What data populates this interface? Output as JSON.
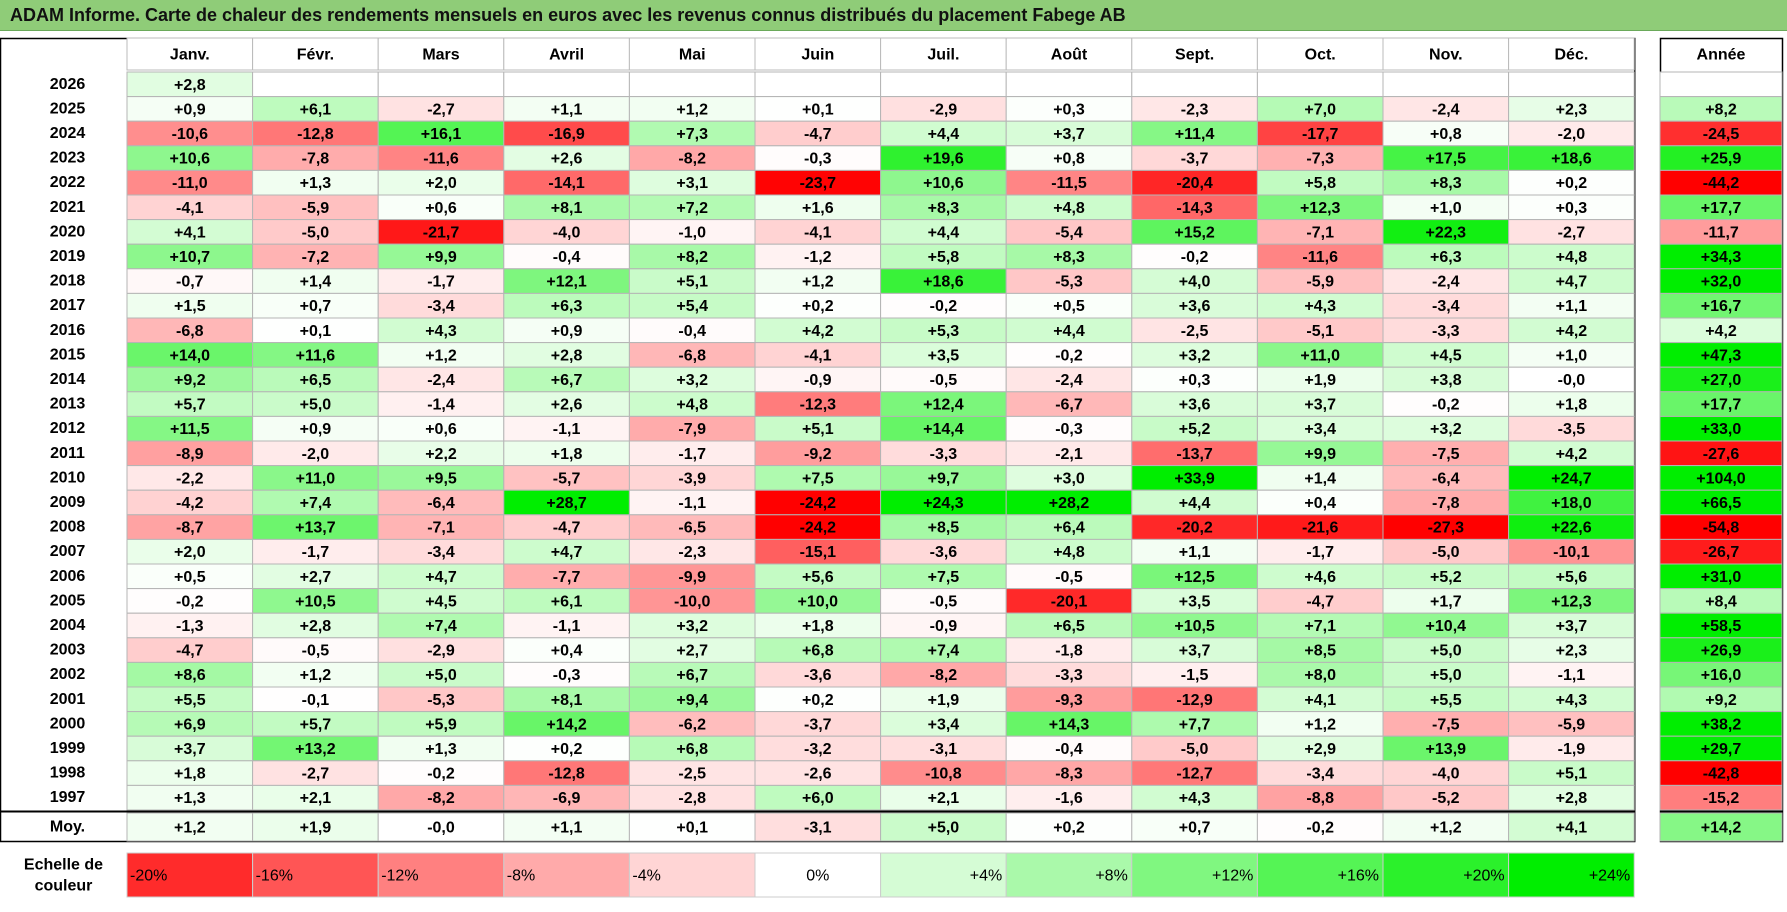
{
  "title": "ADAM Informe. Carte de chaleur des rendements mensuels en euros avec les revenus connus distribués du placement Fabege AB",
  "chart_data": {
    "type": "heatmap",
    "months": [
      "Janv.",
      "Févr.",
      "Mars",
      "Avril",
      "Mai",
      "Juin",
      "Juil.",
      "Août",
      "Sept.",
      "Oct.",
      "Nov.",
      "Déc."
    ],
    "year_header": "Année",
    "rows": [
      {
        "year": "2026",
        "values": [
          "+2,8",
          null,
          null,
          null,
          null,
          null,
          null,
          null,
          null,
          null,
          null,
          null
        ],
        "annual": null
      },
      {
        "year": "2025",
        "values": [
          "+0,9",
          "+6,1",
          "-2,7",
          "+1,1",
          "+1,2",
          "+0,1",
          "-2,9",
          "+0,3",
          "-2,3",
          "+7,0",
          "-2,4",
          "+2,3"
        ],
        "annual": "+8,2"
      },
      {
        "year": "2024",
        "values": [
          "-10,6",
          "-12,8",
          "+16,1",
          "-16,9",
          "+7,3",
          "-4,7",
          "+4,4",
          "+3,7",
          "+11,4",
          "-17,7",
          "+0,8",
          "-2,0"
        ],
        "annual": "-24,5"
      },
      {
        "year": "2023",
        "values": [
          "+10,6",
          "-7,8",
          "-11,6",
          "+2,6",
          "-8,2",
          "-0,3",
          "+19,6",
          "+0,8",
          "-3,7",
          "-7,3",
          "+17,5",
          "+18,6"
        ],
        "annual": "+25,9"
      },
      {
        "year": "2022",
        "values": [
          "-11,0",
          "+1,3",
          "+2,0",
          "-14,1",
          "+3,1",
          "-23,7",
          "+10,6",
          "-11,5",
          "-20,4",
          "+5,8",
          "+8,3",
          "+0,2"
        ],
        "annual": "-44,2"
      },
      {
        "year": "2021",
        "values": [
          "-4,1",
          "-5,9",
          "+0,6",
          "+8,1",
          "+7,2",
          "+1,6",
          "+8,3",
          "+4,8",
          "-14,3",
          "+12,3",
          "+1,0",
          "+0,3"
        ],
        "annual": "+17,7"
      },
      {
        "year": "2020",
        "values": [
          "+4,1",
          "-5,0",
          "-21,7",
          "-4,0",
          "-1,0",
          "-4,1",
          "+4,4",
          "-5,4",
          "+15,2",
          "-7,1",
          "+22,3",
          "-2,7"
        ],
        "annual": "-11,7"
      },
      {
        "year": "2019",
        "values": [
          "+10,7",
          "-7,2",
          "+9,9",
          "-0,4",
          "+8,2",
          "-1,2",
          "+5,8",
          "+8,3",
          "-0,2",
          "-11,6",
          "+6,3",
          "+4,8"
        ],
        "annual": "+34,3"
      },
      {
        "year": "2018",
        "values": [
          "-0,7",
          "+1,4",
          "-1,7",
          "+12,1",
          "+5,1",
          "+1,2",
          "+18,6",
          "-5,3",
          "+4,0",
          "-5,9",
          "-2,4",
          "+4,7"
        ],
        "annual": "+32,0"
      },
      {
        "year": "2017",
        "values": [
          "+1,5",
          "+0,7",
          "-3,4",
          "+6,3",
          "+5,4",
          "+0,2",
          "-0,2",
          "+0,5",
          "+3,6",
          "+4,3",
          "-3,4",
          "+1,1"
        ],
        "annual": "+16,7"
      },
      {
        "year": "2016",
        "values": [
          "-6,8",
          "+0,1",
          "+4,3",
          "+0,9",
          "-0,4",
          "+4,2",
          "+5,3",
          "+4,4",
          "-2,5",
          "-5,1",
          "-3,3",
          "+4,2"
        ],
        "annual": "+4,2"
      },
      {
        "year": "2015",
        "values": [
          "+14,0",
          "+11,6",
          "+1,2",
          "+2,8",
          "-6,8",
          "-4,1",
          "+3,5",
          "-0,2",
          "+3,2",
          "+11,0",
          "+4,5",
          "+1,0"
        ],
        "annual": "+47,3"
      },
      {
        "year": "2014",
        "values": [
          "+9,2",
          "+6,5",
          "-2,4",
          "+6,7",
          "+3,2",
          "-0,9",
          "-0,5",
          "-2,4",
          "+0,3",
          "+1,9",
          "+3,8",
          "-0,0"
        ],
        "annual": "+27,0"
      },
      {
        "year": "2013",
        "values": [
          "+5,7",
          "+5,0",
          "-1,4",
          "+2,6",
          "+4,8",
          "-12,3",
          "+12,4",
          "-6,7",
          "+3,6",
          "+3,7",
          "-0,2",
          "+1,8"
        ],
        "annual": "+17,7"
      },
      {
        "year": "2012",
        "values": [
          "+11,5",
          "+0,9",
          "+0,6",
          "-1,1",
          "-7,9",
          "+5,1",
          "+14,4",
          "-0,3",
          "+5,2",
          "+3,4",
          "+3,2",
          "-3,5"
        ],
        "annual": "+33,0"
      },
      {
        "year": "2011",
        "values": [
          "-8,9",
          "-2,0",
          "+2,2",
          "+1,8",
          "-1,7",
          "-9,2",
          "-3,3",
          "-2,1",
          "-13,7",
          "+9,9",
          "-7,5",
          "+4,2"
        ],
        "annual": "-27,6"
      },
      {
        "year": "2010",
        "values": [
          "-2,2",
          "+11,0",
          "+9,5",
          "-5,7",
          "-3,9",
          "+7,5",
          "+9,7",
          "+3,0",
          "+33,9",
          "+1,4",
          "-6,4",
          "+24,7"
        ],
        "annual": "+104,0"
      },
      {
        "year": "2009",
        "values": [
          "-4,2",
          "+7,4",
          "-6,4",
          "+28,7",
          "-1,1",
          "-24,2",
          "+24,3",
          "+28,2",
          "+4,4",
          "+0,4",
          "-7,8",
          "+18,0"
        ],
        "annual": "+66,5"
      },
      {
        "year": "2008",
        "values": [
          "-8,7",
          "+13,7",
          "-7,1",
          "-4,7",
          "-6,5",
          "-24,2",
          "+8,5",
          "+6,4",
          "-20,2",
          "-21,6",
          "-27,3",
          "+22,6"
        ],
        "annual": "-54,8"
      },
      {
        "year": "2007",
        "values": [
          "+2,0",
          "-1,7",
          "-3,4",
          "+4,7",
          "-2,3",
          "-15,1",
          "-3,6",
          "+4,8",
          "+1,1",
          "-1,7",
          "-5,0",
          "-10,1"
        ],
        "annual": "-26,7"
      },
      {
        "year": "2006",
        "values": [
          "+0,5",
          "+2,7",
          "+4,7",
          "-7,7",
          "-9,9",
          "+5,6",
          "+7,5",
          "-0,5",
          "+12,5",
          "+4,6",
          "+5,2",
          "+5,6"
        ],
        "annual": "+31,0"
      },
      {
        "year": "2005",
        "values": [
          "-0,2",
          "+10,5",
          "+4,5",
          "+6,1",
          "-10,0",
          "+10,0",
          "-0,5",
          "-20,1",
          "+3,5",
          "-4,7",
          "+1,7",
          "+12,3"
        ],
        "annual": "+8,4"
      },
      {
        "year": "2004",
        "values": [
          "-1,3",
          "+2,8",
          "+7,4",
          "-1,1",
          "+3,2",
          "+1,8",
          "-0,9",
          "+6,5",
          "+10,5",
          "+7,1",
          "+10,4",
          "+3,7"
        ],
        "annual": "+58,5"
      },
      {
        "year": "2003",
        "values": [
          "-4,7",
          "-0,5",
          "-2,9",
          "+0,4",
          "+2,7",
          "+6,8",
          "+7,4",
          "-1,8",
          "+3,7",
          "+8,5",
          "+5,0",
          "+2,3"
        ],
        "annual": "+26,9"
      },
      {
        "year": "2002",
        "values": [
          "+8,6",
          "+1,2",
          "+5,0",
          "-0,3",
          "+6,7",
          "-3,6",
          "-8,2",
          "-3,3",
          "-1,5",
          "+8,0",
          "+5,0",
          "-1,1"
        ],
        "annual": "+16,0"
      },
      {
        "year": "2001",
        "values": [
          "+5,5",
          "-0,1",
          "-5,3",
          "+8,1",
          "+9,4",
          "+0,2",
          "+1,9",
          "-9,3",
          "-12,9",
          "+4,1",
          "+5,5",
          "+4,3"
        ],
        "annual": "+9,2"
      },
      {
        "year": "2000",
        "values": [
          "+6,9",
          "+5,7",
          "+5,9",
          "+14,2",
          "-6,2",
          "-3,7",
          "+3,4",
          "+14,3",
          "+7,7",
          "+1,2",
          "-7,5",
          "-5,9"
        ],
        "annual": "+38,2"
      },
      {
        "year": "1999",
        "values": [
          "+3,7",
          "+13,2",
          "+1,3",
          "+0,2",
          "+6,8",
          "-3,2",
          "-3,1",
          "-0,4",
          "-5,0",
          "+2,9",
          "+13,9",
          "-1,9"
        ],
        "annual": "+29,7"
      },
      {
        "year": "1998",
        "values": [
          "+1,8",
          "-2,7",
          "-0,2",
          "-12,8",
          "-2,5",
          "-2,6",
          "-10,8",
          "-8,3",
          "-12,7",
          "-3,4",
          "-4,0",
          "+5,1"
        ],
        "annual": "-42,8"
      },
      {
        "year": "1997",
        "values": [
          "+1,3",
          "+2,1",
          "-8,2",
          "-6,9",
          "-2,8",
          "+6,0",
          "+2,1",
          "-1,6",
          "+4,3",
          "-8,8",
          "-5,2",
          "+2,8"
        ],
        "annual": "-15,2"
      }
    ],
    "average": {
      "label": "Moy.",
      "values": [
        "+1,2",
        "+1,9",
        "-0,0",
        "+1,1",
        "+0,1",
        "-3,1",
        "+5,0",
        "+0,2",
        "+0,7",
        "-0,2",
        "+1,2",
        "+4,1"
      ],
      "annual": "+14,2"
    },
    "scale": {
      "label_line1": "Echelle de",
      "label_line2": "couleur",
      "steps": [
        "-20%",
        "-16%",
        "-12%",
        "-8%",
        "-4%",
        "0%",
        "+4%",
        "+8%",
        "+12%",
        "+16%",
        "+20%",
        "+24%"
      ]
    },
    "colors": {
      "negative": "#ff0000",
      "neutral": "#ffffff",
      "positive": "#00ee00"
    }
  }
}
